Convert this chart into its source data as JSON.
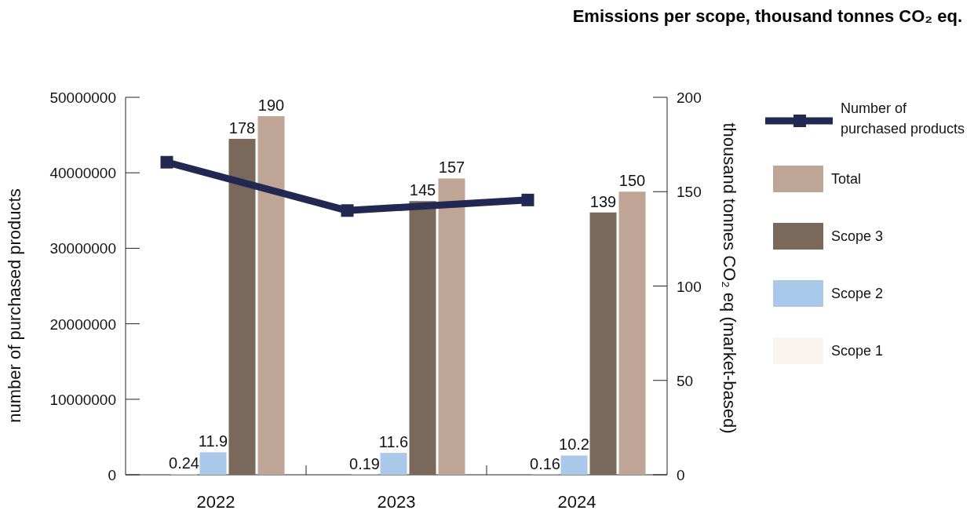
{
  "chart_data": {
    "type": "bar",
    "title": "Emissions per scope, thousand tonnes CO₂ eq.",
    "categories": [
      "2022",
      "2023",
      "2024"
    ],
    "ylabel": "number of purchased products",
    "y2label": "thousand tonnes CO₂ eq (market-based)",
    "ylim": [
      0,
      50000000
    ],
    "yticks": [
      0,
      10000000,
      20000000,
      30000000,
      40000000,
      50000000
    ],
    "y2lim": [
      0,
      200
    ],
    "y2ticks": [
      0,
      50,
      100,
      150,
      200
    ],
    "series": [
      {
        "name": "Scope 1",
        "color": "#f9f4f0",
        "axis": "y2",
        "values": [
          0.24,
          0.19,
          0.16
        ],
        "value_labels": [
          "0.24",
          "0.19",
          "0.16"
        ]
      },
      {
        "name": "Scope 2",
        "color": "#a9c8ea",
        "axis": "y2",
        "values": [
          11.9,
          11.6,
          10.2
        ],
        "value_labels": [
          "11.9",
          "11.6",
          "10.2"
        ]
      },
      {
        "name": "Scope 3",
        "color": "#7a685b",
        "axis": "y2",
        "values": [
          178,
          145,
          139
        ],
        "value_labels": [
          "178",
          "145",
          "139"
        ]
      },
      {
        "name": "Total",
        "color": "#bea596",
        "axis": "y2",
        "values": [
          190,
          157,
          150
        ],
        "value_labels": [
          "190",
          "157",
          "150"
        ]
      },
      {
        "name": "Number of purchased products",
        "type": "line",
        "color": "#212852",
        "marker": "square",
        "values": [
          41400000,
          35000000,
          36400000
        ]
      }
    ],
    "legend": "right",
    "grid": false
  }
}
